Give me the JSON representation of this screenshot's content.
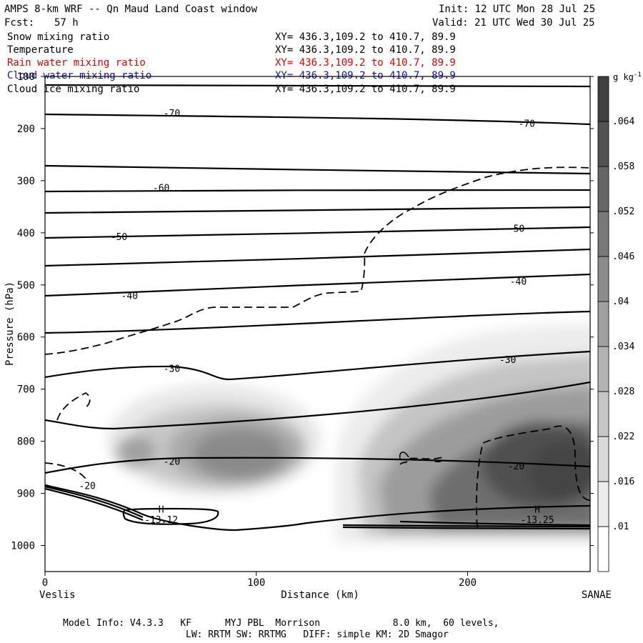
{
  "header": {
    "title": "AMPS 8-km WRF -- Qn Maud Land Coast window",
    "init": "Init: 12 UTC Mon 28 Jul 25",
    "fcst_label": "Fcst:",
    "fcst_value": "57 h",
    "valid": "Valid: 21 UTC Wed 30 Jul 25"
  },
  "fields": [
    {
      "name": "Snow mixing ratio",
      "xy": "XY= 436.3,109.2 to 410.7, 89.9",
      "color": "#000000"
    },
    {
      "name": "Temperature",
      "xy": "XY= 436.3,109.2 to 410.7, 89.9",
      "color": "#000000"
    },
    {
      "name": "Rain water mixing ratio",
      "xy": "XY= 436.3,109.2 to 410.7, 89.9",
      "color": "#e00000"
    },
    {
      "name": "Cloud water mixing ratio",
      "xy": "XY= 436.3,109.2 to 410.7, 89.9",
      "color": "#1010c0"
    },
    {
      "name": "Cloud ice mixing ratio",
      "xy": "XY= 436.3,109.2 to 410.7, 89.9",
      "color": "#000000"
    }
  ],
  "footer": {
    "line1": "Model Info: V4.3.3   KF      MYJ PBL  Morrison             8.0 km,  60 levels,",
    "line2": "LW: RRTM SW: RRTMG   DIFF: simple KM: 2D Smagor"
  },
  "chart_data": {
    "type": "heatmap",
    "title": "",
    "xlabel": "Distance (km)",
    "ylabel": "Pressure (hPa)",
    "xlim": [
      0,
      258
    ],
    "ylim": [
      1050,
      100
    ],
    "x_ticks": [
      0,
      100,
      200
    ],
    "y_ticks": [
      100,
      200,
      300,
      400,
      500,
      600,
      700,
      800,
      900,
      1000
    ],
    "x_endpoints": {
      "left": "Veslis",
      "right": "SANAE"
    },
    "colorbar": {
      "unit_base": "g kg",
      "unit_exp": "-1",
      "levels": [
        0.01,
        0.016,
        0.022,
        0.028,
        0.034,
        0.04,
        0.046,
        0.052,
        0.058,
        0.064
      ]
    },
    "temperature_isotherms_C": [
      -70,
      -60,
      -50,
      -40,
      -30,
      -20
    ],
    "temperature_labels": [
      {
        "text": "-70",
        "x": 60,
        "p": 170
      },
      {
        "text": "-70",
        "x": 228,
        "p": 190
      },
      {
        "text": "-60",
        "x": 55,
        "p": 313
      },
      {
        "text": "-50",
        "x": 35,
        "p": 407
      },
      {
        "text": "-50",
        "x": 223,
        "p": 391
      },
      {
        "text": "-40",
        "x": 40,
        "p": 520
      },
      {
        "text": "-40",
        "x": 224,
        "p": 493
      },
      {
        "text": "-30",
        "x": 60,
        "p": 660
      },
      {
        "text": "-30",
        "x": 219,
        "p": 643
      },
      {
        "text": "-20",
        "x": 60,
        "p": 838
      },
      {
        "text": "-20",
        "x": 223,
        "p": 847
      },
      {
        "text": "-20",
        "x": 20,
        "p": 885
      }
    ],
    "highs": [
      {
        "symbol": "H",
        "value": "-13.12",
        "x": 55
      },
      {
        "symbol": "H",
        "value": "-13.25",
        "x": 233
      }
    ],
    "snow_maxima_gkg": [
      {
        "x": 85,
        "p": 820,
        "value": 0.044
      },
      {
        "x": 240,
        "p": 840,
        "value": 0.066
      }
    ]
  }
}
